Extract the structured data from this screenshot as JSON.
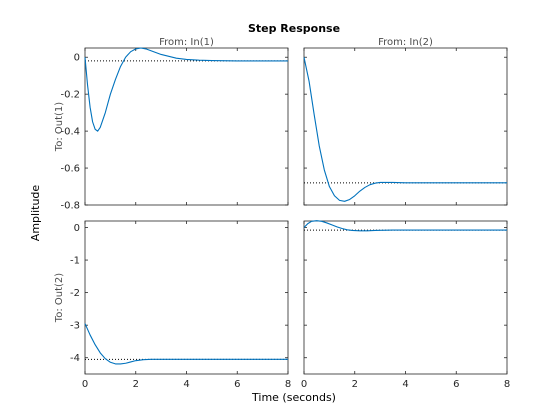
{
  "chart_data": {
    "type": "line",
    "title": "Step Response",
    "xlabel": "Time (seconds)",
    "ylabel": "Amplitude",
    "grid": false,
    "column_labels": [
      "From: In(1)",
      "From: In(2)"
    ],
    "row_labels": [
      "To: Out(1)",
      "To: Out(2)"
    ],
    "x_ticks": [
      "0",
      "2",
      "4",
      "6",
      "8"
    ],
    "xlim": [
      0,
      8
    ],
    "rows": [
      {
        "ylim": [
          -0.8,
          0.05
        ],
        "y_ticks": [
          "0",
          "-0.2",
          "-0.4",
          "-0.6",
          "-0.8"
        ],
        "y_tick_values": [
          0,
          -0.2,
          -0.4,
          -0.6,
          -0.8
        ]
      },
      {
        "ylim": [
          -4.5,
          0.2
        ],
        "y_ticks": [
          "0",
          "-1",
          "-2",
          "-3",
          "-4"
        ],
        "y_tick_values": [
          0,
          -1,
          -2,
          -3,
          -4
        ]
      }
    ],
    "subplots": [
      {
        "row": 0,
        "col": 0,
        "series_color": "#0072bd",
        "steady_state": -0.02,
        "x": [
          0,
          0.1,
          0.2,
          0.3,
          0.4,
          0.5,
          0.6,
          0.7,
          0.8,
          0.9,
          1.0,
          1.2,
          1.4,
          1.6,
          1.8,
          2.0,
          2.2,
          2.4,
          2.6,
          2.8,
          3.0,
          3.3,
          3.6,
          4.0,
          4.5,
          5.0,
          6.0,
          7.0,
          8.0
        ],
        "y": [
          0,
          -0.15,
          -0.27,
          -0.35,
          -0.39,
          -0.4,
          -0.38,
          -0.34,
          -0.3,
          -0.25,
          -0.2,
          -0.12,
          -0.05,
          0.0,
          0.03,
          0.045,
          0.05,
          0.045,
          0.035,
          0.025,
          0.015,
          0.005,
          -0.005,
          -0.012,
          -0.016,
          -0.018,
          -0.02,
          -0.02,
          -0.02
        ]
      },
      {
        "row": 0,
        "col": 1,
        "series_color": "#0072bd",
        "steady_state": -0.68,
        "x": [
          0,
          0.2,
          0.4,
          0.6,
          0.8,
          1.0,
          1.2,
          1.4,
          1.6,
          1.8,
          2.0,
          2.2,
          2.4,
          2.6,
          2.8,
          3.0,
          3.5,
          4.0,
          5.0,
          6.0,
          7.0,
          8.0
        ],
        "y": [
          0,
          -0.13,
          -0.31,
          -0.48,
          -0.61,
          -0.7,
          -0.75,
          -0.775,
          -0.78,
          -0.77,
          -0.75,
          -0.725,
          -0.705,
          -0.69,
          -0.682,
          -0.678,
          -0.678,
          -0.68,
          -0.68,
          -0.68,
          -0.68,
          -0.68
        ]
      },
      {
        "row": 1,
        "col": 0,
        "series_color": "#0072bd",
        "steady_state": -4.05,
        "x": [
          0,
          0.2,
          0.4,
          0.6,
          0.8,
          1.0,
          1.2,
          1.4,
          1.6,
          1.8,
          2.0,
          2.3,
          2.6,
          3.0,
          3.5,
          4.0,
          5.0,
          6.0,
          7.0,
          8.0
        ],
        "y": [
          -2.95,
          -3.3,
          -3.6,
          -3.85,
          -4.03,
          -4.14,
          -4.19,
          -4.19,
          -4.17,
          -4.13,
          -4.09,
          -4.06,
          -4.05,
          -4.05,
          -4.05,
          -4.05,
          -4.05,
          -4.05,
          -4.05,
          -4.05
        ]
      },
      {
        "row": 1,
        "col": 1,
        "series_color": "#0072bd",
        "steady_state": -0.08,
        "x": [
          0,
          0.15,
          0.3,
          0.5,
          0.7,
          0.9,
          1.1,
          1.3,
          1.5,
          1.7,
          1.9,
          2.2,
          2.5,
          2.8,
          3.0,
          3.5,
          4.0,
          5.0,
          6.0,
          7.0,
          8.0
        ],
        "y": [
          0,
          0.12,
          0.19,
          0.21,
          0.19,
          0.14,
          0.08,
          0.02,
          -0.03,
          -0.07,
          -0.09,
          -0.1,
          -0.1,
          -0.09,
          -0.085,
          -0.08,
          -0.08,
          -0.08,
          -0.08,
          -0.08,
          -0.08
        ]
      }
    ]
  }
}
